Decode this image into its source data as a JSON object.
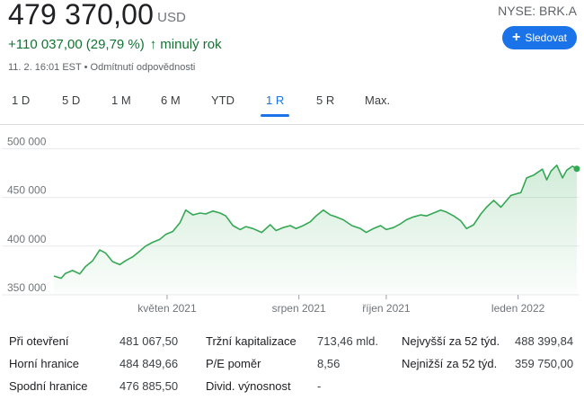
{
  "quote": {
    "price": "479 370,00",
    "currency": "USD",
    "change_abs": "+110 037,00",
    "change_pct": "(29,79 %)",
    "change_arrow": "↑",
    "change_period": "minulý rok",
    "timestamp": "11. 2. 16:01 EST",
    "separator": "•",
    "disclaimer": "Odmítnutí odpovědnosti",
    "ticker": "NYSE: BRK.A",
    "follow_label": "Sledovat",
    "follow_icon": "plus-icon"
  },
  "tabs": [
    {
      "label": "1 D",
      "active": false
    },
    {
      "label": "5 D",
      "active": false
    },
    {
      "label": "1 M",
      "active": false
    },
    {
      "label": "6 M",
      "active": false
    },
    {
      "label": "YTD",
      "active": false
    },
    {
      "label": "1 R",
      "active": true
    },
    {
      "label": "5 R",
      "active": false
    },
    {
      "label": "Max.",
      "active": false
    }
  ],
  "colors": {
    "line": "#34a853",
    "accent": "#1a73e8",
    "positive": "#137333",
    "grid": "#e8eaed"
  },
  "chart_data": {
    "type": "area",
    "y_ticks": [
      350000,
      400000,
      450000,
      500000
    ],
    "y_tick_labels": [
      "350 000",
      "400 000",
      "450 000",
      "500 000"
    ],
    "ylim": [
      350000,
      505000
    ],
    "x_range": [
      "2021-02-11",
      "2022-02-11"
    ],
    "x_ticks": [
      {
        "date": "2021-05-01",
        "label": "květen 2021"
      },
      {
        "date": "2021-08-01",
        "label": "srpen 2021"
      },
      {
        "date": "2021-10-01",
        "label": "říjen 2021"
      },
      {
        "date": "2022-01-01",
        "label": "leden 2022"
      }
    ],
    "grid": true,
    "series": [
      {
        "values": [
          [
            "2021-02-11",
            369370
          ],
          [
            "2021-02-16",
            367000
          ],
          [
            "2021-02-19",
            372000
          ],
          [
            "2021-02-24",
            375000
          ],
          [
            "2021-03-01",
            371500
          ],
          [
            "2021-03-05",
            379000
          ],
          [
            "2021-03-10",
            385000
          ],
          [
            "2021-03-15",
            396000
          ],
          [
            "2021-03-19",
            393000
          ],
          [
            "2021-03-24",
            384000
          ],
          [
            "2021-03-29",
            381000
          ],
          [
            "2021-04-02",
            385000
          ],
          [
            "2021-04-07",
            389000
          ],
          [
            "2021-04-12",
            395000
          ],
          [
            "2021-04-16",
            400000
          ],
          [
            "2021-04-21",
            404000
          ],
          [
            "2021-04-26",
            407000
          ],
          [
            "2021-04-30",
            412000
          ],
          [
            "2021-05-05",
            415000
          ],
          [
            "2021-05-10",
            424000
          ],
          [
            "2021-05-14",
            437000
          ],
          [
            "2021-05-19",
            432000
          ],
          [
            "2021-05-24",
            434000
          ],
          [
            "2021-05-28",
            433000
          ],
          [
            "2021-06-02",
            436000
          ],
          [
            "2021-06-07",
            434000
          ],
          [
            "2021-06-11",
            431000
          ],
          [
            "2021-06-16",
            421000
          ],
          [
            "2021-06-21",
            417000
          ],
          [
            "2021-06-25",
            420000
          ],
          [
            "2021-06-30",
            418000
          ],
          [
            "2021-07-06",
            414000
          ],
          [
            "2021-07-12",
            422000
          ],
          [
            "2021-07-16",
            416000
          ],
          [
            "2021-07-21",
            419000
          ],
          [
            "2021-07-26",
            421000
          ],
          [
            "2021-07-30",
            418000
          ],
          [
            "2021-08-04",
            421000
          ],
          [
            "2021-08-09",
            425000
          ],
          [
            "2021-08-13",
            431000
          ],
          [
            "2021-08-18",
            437000
          ],
          [
            "2021-08-23",
            432000
          ],
          [
            "2021-08-27",
            430000
          ],
          [
            "2021-09-01",
            427000
          ],
          [
            "2021-09-07",
            421000
          ],
          [
            "2021-09-13",
            418000
          ],
          [
            "2021-09-17",
            414000
          ],
          [
            "2021-09-22",
            418000
          ],
          [
            "2021-09-27",
            421000
          ],
          [
            "2021-10-01",
            417000
          ],
          [
            "2021-10-06",
            419000
          ],
          [
            "2021-10-11",
            423000
          ],
          [
            "2021-10-15",
            427000
          ],
          [
            "2021-10-20",
            430000
          ],
          [
            "2021-10-25",
            432000
          ],
          [
            "2021-10-29",
            431000
          ],
          [
            "2021-11-03",
            434000
          ],
          [
            "2021-11-08",
            437000
          ],
          [
            "2021-11-12",
            435000
          ],
          [
            "2021-11-17",
            431000
          ],
          [
            "2021-11-22",
            426000
          ],
          [
            "2021-11-26",
            418000
          ],
          [
            "2021-12-01",
            422000
          ],
          [
            "2021-12-06",
            433000
          ],
          [
            "2021-12-10",
            440000
          ],
          [
            "2021-12-15",
            447000
          ],
          [
            "2021-12-20",
            440000
          ],
          [
            "2021-12-27",
            452000
          ],
          [
            "2022-01-03",
            455000
          ],
          [
            "2022-01-07",
            470000
          ],
          [
            "2022-01-12",
            473000
          ],
          [
            "2022-01-18",
            479000
          ],
          [
            "2022-01-21",
            468000
          ],
          [
            "2022-01-24",
            477000
          ],
          [
            "2022-01-28",
            483000
          ],
          [
            "2022-02-01",
            470000
          ],
          [
            "2022-02-04",
            478000
          ],
          [
            "2022-02-08",
            482000
          ],
          [
            "2022-02-11",
            479370
          ]
        ]
      }
    ]
  },
  "stats": [
    {
      "label": "Při otevření",
      "value": "481 067,50"
    },
    {
      "label": "Horní hranice",
      "value": "484 849,66"
    },
    {
      "label": "Spodní hranice",
      "value": "476 885,50"
    },
    {
      "label": "Tržní kapitalizace",
      "value": "713,46 mld."
    },
    {
      "label": "P/E poměr",
      "value": "8,56"
    },
    {
      "label": "Divid. výnosnost",
      "value": "-"
    },
    {
      "label": "Nejvyšší za 52 týd.",
      "value": "488 399,84"
    },
    {
      "label": "Nejnižší za 52 týd.",
      "value": "359 750,00"
    }
  ]
}
